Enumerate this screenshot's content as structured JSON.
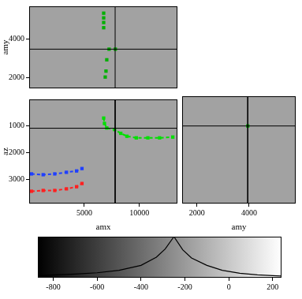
{
  "chart_data": [
    {
      "type": "scatter",
      "ylabel": "amy",
      "tick_labels": "y",
      "xlim": [
        0,
        13450
      ],
      "ylim": [
        1450,
        5700
      ],
      "yticks": [
        2000,
        4000
      ],
      "crosshair": {
        "x": 7800,
        "y": 3480
      },
      "series": [
        {
          "color": "#00b000",
          "marker": "square",
          "line_style": "none",
          "x": [
            6760,
            6760,
            6760,
            6760,
            7250,
            7820,
            7040,
            6970,
            6900
          ],
          "values": [
            5345,
            5100,
            4860,
            4590,
            3480,
            3480,
            2930,
            2345,
            2035
          ]
        }
      ]
    },
    {
      "type": "scatter",
      "xlabel": "amx",
      "ylabel": "az",
      "tick_labels": true,
      "xlim": [
        0,
        13450
      ],
      "ylim": [
        3900,
        0
      ],
      "xticks": [
        5000,
        10000
      ],
      "yticks": [
        1000,
        2000,
        3000
      ],
      "crosshair": {
        "x": 7800,
        "y": 1080
      },
      "series": [
        {
          "color": "#00e000",
          "marker": "square",
          "line_style": "dashed",
          "x": [
            6760,
            6830,
            7040,
            7750,
            8310,
            8870,
            9720,
            10770,
            11830,
            13030
          ],
          "values": [
            700,
            900,
            1070,
            1130,
            1270,
            1380,
            1440,
            1440,
            1440,
            1410
          ]
        },
        {
          "color": "#2040ff",
          "marker": "square",
          "line_style": "dashed",
          "x": [
            210,
            1270,
            2320,
            3380,
            4300,
            4790
          ],
          "values": [
            2790,
            2820,
            2790,
            2730,
            2680,
            2590
          ]
        },
        {
          "color": "#ff2020",
          "marker": "square",
          "line_style": "dashed",
          "x": [
            210,
            1270,
            2320,
            3380,
            4300,
            4790
          ],
          "values": [
            3440,
            3410,
            3410,
            3350,
            3270,
            3150
          ]
        }
      ]
    },
    {
      "type": "scatter",
      "xlabel": "amy",
      "tick_labels": "x",
      "xlim": [
        1430,
        5790
      ],
      "ylim": [
        3900,
        0
      ],
      "xticks": [
        2000,
        4000
      ],
      "crosshair": {
        "x": 3950,
        "y": 1080
      },
      "series": [
        {
          "color": "#00b000",
          "marker": "square",
          "line_style": "none",
          "x": [
            3950
          ],
          "values": [
            1080
          ]
        }
      ]
    },
    {
      "type": "colorbar",
      "tick_labels": "x",
      "xlim": [
        -870,
        240
      ],
      "ylim": [
        0,
        1
      ],
      "xticks": [
        -800,
        -600,
        -400,
        -200,
        0,
        200
      ],
      "colors": [
        "#000000",
        "#ffffff"
      ],
      "histogram": {
        "x": [
          -870,
          -700,
          -600,
          -500,
          -400,
          -330,
          -290,
          -250,
          -210,
          -170,
          -100,
          -30,
          50,
          130,
          200,
          240
        ],
        "values": [
          0.05,
          0.09,
          0.12,
          0.18,
          0.3,
          0.5,
          0.7,
          1.0,
          0.68,
          0.48,
          0.3,
          0.18,
          0.11,
          0.07,
          0.05,
          0.04
        ]
      }
    }
  ]
}
